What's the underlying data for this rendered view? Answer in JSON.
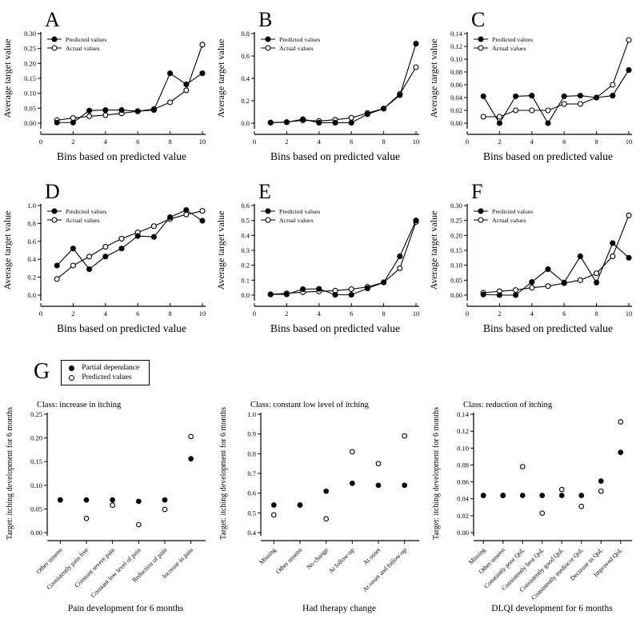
{
  "figure": {
    "background": "#ffffff",
    "ink": "#000000"
  },
  "g_section": {
    "label": "G",
    "legend": [
      {
        "label": "Partial dependance",
        "marker": "filled"
      },
      {
        "label": "Predicted values",
        "marker": "open"
      }
    ]
  },
  "chart_data": [
    {
      "id": "A",
      "panel_label": "A",
      "type": "line",
      "xlabel": "Bins based on predicted value",
      "ylabel": "Average target value",
      "x": [
        1,
        2,
        3,
        4,
        5,
        6,
        7,
        8,
        9,
        10
      ],
      "xlim": [
        0,
        10
      ],
      "xticks": [
        0,
        2,
        4,
        6,
        8,
        10
      ],
      "ylim": [
        0,
        0.3
      ],
      "ytick_values": [
        0,
        0.05,
        0.1,
        0.15,
        0.2,
        0.25,
        0.3
      ],
      "ytick_labels": [
        "0.00",
        "0.05",
        "0.10",
        "0.15",
        "0.20",
        "0.25",
        "0.30"
      ],
      "series": [
        {
          "name": "Predicted values",
          "marker": "filled",
          "values": [
            0.002,
            0.002,
            0.042,
            0.044,
            0.044,
            0.04,
            0.044,
            0.167,
            0.13,
            0.167
          ]
        },
        {
          "name": "Actual values",
          "marker": "open",
          "values": [
            0.01,
            0.017,
            0.023,
            0.027,
            0.033,
            0.04,
            0.047,
            0.07,
            0.11,
            0.263
          ]
        }
      ]
    },
    {
      "id": "B",
      "panel_label": "B",
      "type": "line",
      "xlabel": "Bins based on predicted value",
      "ylabel": "Average target value",
      "x": [
        1,
        2,
        3,
        4,
        5,
        6,
        7,
        8,
        9,
        10
      ],
      "xlim": [
        0,
        10
      ],
      "xticks": [
        0,
        2,
        4,
        6,
        8,
        10
      ],
      "ylim": [
        0,
        0.8
      ],
      "ytick_values": [
        0,
        0.2,
        0.4,
        0.6,
        0.8
      ],
      "ytick_labels": [
        "0.0",
        "0.2",
        "0.4",
        "0.6",
        "0.8"
      ],
      "series": [
        {
          "name": "Predicted values",
          "marker": "filled",
          "values": [
            0.005,
            0.008,
            0.035,
            0.004,
            0.004,
            0.004,
            0.08,
            0.13,
            0.25,
            0.71
          ]
        },
        {
          "name": "Actual values",
          "marker": "open",
          "values": [
            0.005,
            0.01,
            0.025,
            0.02,
            0.03,
            0.048,
            0.09,
            0.13,
            0.26,
            0.5
          ]
        }
      ]
    },
    {
      "id": "C",
      "panel_label": "C",
      "type": "line",
      "xlabel": "Bins based on predicted value",
      "ylabel": "Average target value",
      "x": [
        1,
        2,
        3,
        4,
        5,
        6,
        7,
        8,
        9,
        10
      ],
      "xlim": [
        0,
        10
      ],
      "xticks": [
        0,
        2,
        4,
        6,
        8,
        10
      ],
      "ylim": [
        0,
        0.14
      ],
      "ytick_values": [
        0,
        0.02,
        0.04,
        0.06,
        0.08,
        0.1,
        0.12,
        0.14
      ],
      "ytick_labels": [
        "0.00",
        "0.02",
        "0.04",
        "0.06",
        "0.08",
        "0.10",
        "0.12",
        "0.14"
      ],
      "series": [
        {
          "name": "Predicted values",
          "marker": "filled",
          "values": [
            0.042,
            0.0,
            0.042,
            0.043,
            0.0,
            0.042,
            0.043,
            0.04,
            0.043,
            0.083
          ]
        },
        {
          "name": "Actual values",
          "marker": "open",
          "values": [
            0.01,
            0.01,
            0.02,
            0.02,
            0.02,
            0.03,
            0.03,
            0.04,
            0.06,
            0.13
          ]
        }
      ]
    },
    {
      "id": "D",
      "panel_label": "D",
      "type": "line",
      "xlabel": "Bins based on predicted value",
      "ylabel": "Average target value",
      "x": [
        1,
        2,
        3,
        4,
        5,
        6,
        7,
        8,
        9,
        10
      ],
      "xlim": [
        0,
        10
      ],
      "xticks": [
        0,
        2,
        4,
        6,
        8,
        10
      ],
      "ylim": [
        0,
        1.0
      ],
      "ytick_values": [
        0,
        0.2,
        0.4,
        0.6,
        0.8,
        1.0
      ],
      "ytick_labels": [
        "0.0",
        "0.2",
        "0.4",
        "0.6",
        "0.8",
        "1.0"
      ],
      "series": [
        {
          "name": "Predicted values",
          "marker": "filled",
          "values": [
            0.33,
            0.52,
            0.29,
            0.43,
            0.52,
            0.66,
            0.65,
            0.87,
            0.95,
            0.83
          ]
        },
        {
          "name": "Actual values",
          "marker": "open",
          "values": [
            0.18,
            0.33,
            0.43,
            0.54,
            0.63,
            0.7,
            0.77,
            0.85,
            0.9,
            0.94
          ]
        }
      ]
    },
    {
      "id": "E",
      "panel_label": "E",
      "type": "line",
      "xlabel": "Bins based on predicted value",
      "ylabel": "Average target value",
      "x": [
        1,
        2,
        3,
        4,
        5,
        6,
        7,
        8,
        9,
        10
      ],
      "xlim": [
        0,
        10
      ],
      "xticks": [
        0,
        2,
        4,
        6,
        8,
        10
      ],
      "ylim": [
        0,
        0.6
      ],
      "ytick_values": [
        0,
        0.1,
        0.2,
        0.3,
        0.4,
        0.5,
        0.6
      ],
      "ytick_labels": [
        "0.0",
        "0.1",
        "0.2",
        "0.3",
        "0.4",
        "0.5",
        "0.6"
      ],
      "series": [
        {
          "name": "Predicted values",
          "marker": "filled",
          "values": [
            0.005,
            0.005,
            0.04,
            0.042,
            0.002,
            0.002,
            0.045,
            0.085,
            0.26,
            0.5
          ]
        },
        {
          "name": "Actual values",
          "marker": "open",
          "values": [
            0.005,
            0.012,
            0.02,
            0.025,
            0.03,
            0.04,
            0.055,
            0.085,
            0.18,
            0.49
          ]
        }
      ]
    },
    {
      "id": "F",
      "panel_label": "F",
      "type": "line",
      "xlabel": "Bins based on predicted value",
      "ylabel": "Average target value",
      "x": [
        1,
        2,
        3,
        4,
        5,
        6,
        7,
        8,
        9,
        10
      ],
      "xlim": [
        0,
        10
      ],
      "xticks": [
        0,
        2,
        4,
        6,
        8,
        10
      ],
      "ylim": [
        0,
        0.3
      ],
      "ytick_values": [
        0,
        0.05,
        0.1,
        0.15,
        0.2,
        0.25,
        0.3
      ],
      "ytick_labels": [
        "0.00",
        "0.05",
        "0.10",
        "0.15",
        "0.20",
        "0.25",
        "0.30"
      ],
      "series": [
        {
          "name": "Predicted values",
          "marker": "filled",
          "values": [
            0.002,
            0.0,
            0.0,
            0.044,
            0.087,
            0.042,
            0.13,
            0.042,
            0.174,
            0.125
          ]
        },
        {
          "name": "Actual values",
          "marker": "open",
          "values": [
            0.008,
            0.013,
            0.017,
            0.025,
            0.03,
            0.04,
            0.05,
            0.073,
            0.13,
            0.267
          ]
        }
      ]
    },
    {
      "id": "G1",
      "panel_label": "",
      "type": "scatter",
      "title": "Class: increase in itching",
      "xlabel": "Pain development for 6 months",
      "ylabel": "Target: itching development for 6 months",
      "categories": [
        "Other unseen",
        "Consistently pain free",
        "Constant severe pain",
        "Constant low level of pain",
        "Reduction of pain",
        "Increase in pain"
      ],
      "ylim": [
        0,
        0.25
      ],
      "ytick_values": [
        0,
        0.05,
        0.1,
        0.15,
        0.2,
        0.25
      ],
      "ytick_labels": [
        "0.00",
        "0.05",
        "0.10",
        "0.15",
        "0.20",
        "0.25"
      ],
      "series": [
        {
          "name": "Partial dependance",
          "marker": "filled",
          "values": [
            0.069,
            0.069,
            0.069,
            0.066,
            0.069,
            0.156
          ]
        },
        {
          "name": "Predicted values",
          "marker": "open",
          "values": [
            0.069,
            0.03,
            0.058,
            0.017,
            0.049,
            0.203
          ]
        }
      ]
    },
    {
      "id": "G2",
      "panel_label": "",
      "type": "scatter",
      "title": "Class: constant low level of itching",
      "xlabel": "Had therapy change",
      "ylabel": "Target: itching development for 6 months",
      "categories": [
        "Missing",
        "Other unseen",
        "No change",
        "At follow-up",
        "At onset",
        "At onset and follow-up"
      ],
      "ylim": [
        0.4,
        1.0
      ],
      "ytick_values": [
        0.4,
        0.5,
        0.6,
        0.7,
        0.8,
        0.9,
        1.0
      ],
      "ytick_labels": [
        "0.4",
        "0.5",
        "0.6",
        "0.7",
        "0.8",
        "0.9",
        "1.0"
      ],
      "series": [
        {
          "name": "Partial dependance",
          "marker": "filled",
          "values": [
            0.54,
            0.54,
            0.61,
            0.65,
            0.64,
            0.64
          ]
        },
        {
          "name": "Predicted values",
          "marker": "open",
          "values": [
            0.49,
            0.54,
            0.47,
            0.81,
            0.75,
            0.89
          ]
        }
      ]
    },
    {
      "id": "G3",
      "panel_label": "",
      "type": "scatter",
      "title": "Class: reduction of itching",
      "xlabel": "DLQI development for 6 months",
      "ylabel": "Target: itching development for 6 months",
      "categories": [
        "Missing",
        "Other unseen",
        "Constantly poor QoL",
        "Consistently best QoL",
        "Consistently good QoL",
        "Consistently mediocre QoL",
        "Decrease in QoL",
        "Improved QoL"
      ],
      "ylim": [
        0,
        0.14
      ],
      "ytick_values": [
        0,
        0.02,
        0.04,
        0.06,
        0.08,
        0.1,
        0.12,
        0.14
      ],
      "ytick_labels": [
        "0.00",
        "0.02",
        "0.04",
        "0.06",
        "0.08",
        "0.10",
        "0.12",
        "0.14"
      ],
      "series": [
        {
          "name": "Partial dependance",
          "marker": "filled",
          "values": [
            0.044,
            0.044,
            0.044,
            0.044,
            0.044,
            0.044,
            0.061,
            0.095
          ]
        },
        {
          "name": "Predicted values",
          "marker": "open",
          "values": [
            0.044,
            0.044,
            0.078,
            0.023,
            0.051,
            0.031,
            0.049,
            0.131
          ]
        }
      ]
    }
  ]
}
